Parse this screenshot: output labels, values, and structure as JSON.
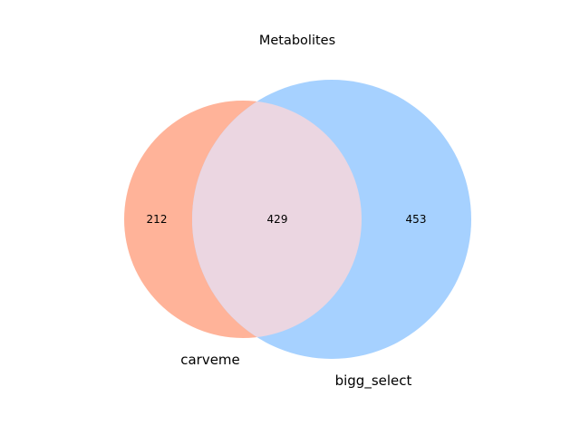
{
  "title": "Metabolites",
  "sets": [
    {
      "label": "carveme",
      "only_count": "212",
      "color": "#FFB399"
    },
    {
      "label": "bigg_select",
      "only_count": "453",
      "color": "#A6D1FF"
    }
  ],
  "intersection": {
    "count": "429",
    "color": "#EBD6E1"
  }
}
